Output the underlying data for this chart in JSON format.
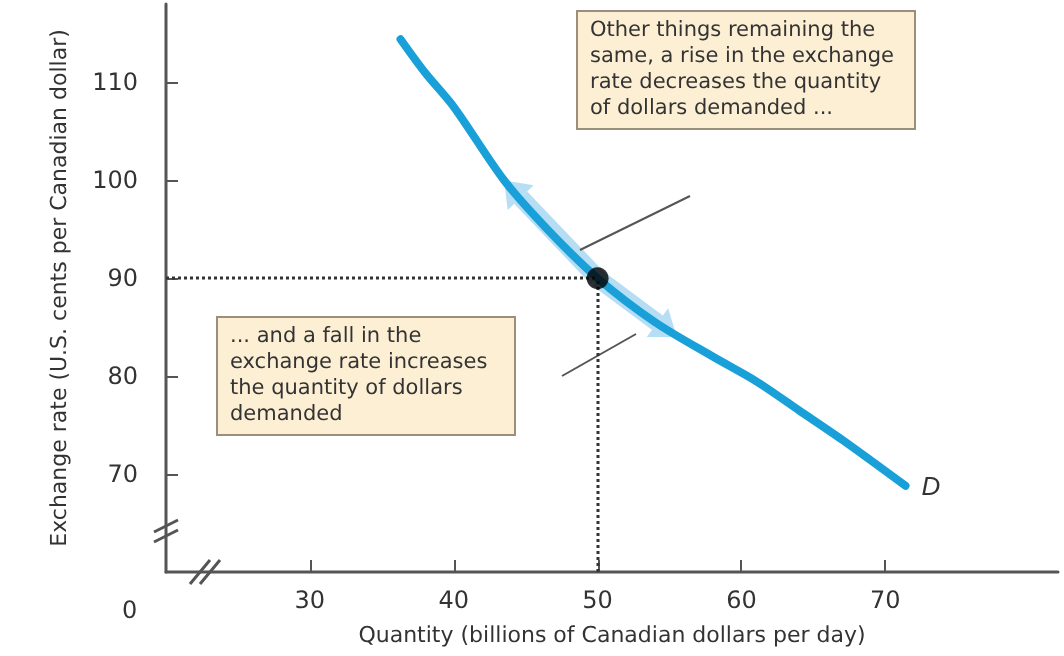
{
  "chart_data": {
    "type": "line",
    "xlabel": "Quantity (billions of Canadian dollars per day)",
    "ylabel": "Exchange rate (U.S. cents per Canadian dollar)",
    "xlim": [
      20,
      82
    ],
    "xticks": [
      30,
      40,
      50,
      60,
      70
    ],
    "ylim": [
      60,
      118
    ],
    "yticks": [
      70,
      80,
      90,
      100,
      110
    ],
    "grid": false,
    "legend": false,
    "marker": "none",
    "line_style": "solid",
    "series": [
      {
        "name": "D",
        "color": "#1aa0d8",
        "x": [
          36.3,
          38,
          40,
          43.5,
          46.5,
          50,
          54,
          58,
          61,
          64,
          67,
          71.4
        ],
        "values": [
          114.4,
          111,
          107.5,
          100,
          95,
          90,
          85.5,
          82,
          79.5,
          76.5,
          73.5,
          68.8
        ]
      },
      {
        "type": "scatter",
        "marker": "circle",
        "color": "#000000",
        "x": [
          50
        ],
        "values": [
          90
        ]
      }
    ],
    "ref_lines": [
      {
        "axis": "x",
        "value": 50,
        "label": null,
        "color": "#333333",
        "line_style": "dotted"
      },
      {
        "axis": "y",
        "value": 90,
        "label": null,
        "color": "#333333",
        "line_style": "dotted"
      }
    ],
    "annotations": [
      "Other things remaining the same, a rise in the exchange rate decreases the quantity of dollars demanded ...",
      "... and a fall in the exchange rate increases the quantity of dollars demanded",
      "0"
    ]
  }
}
